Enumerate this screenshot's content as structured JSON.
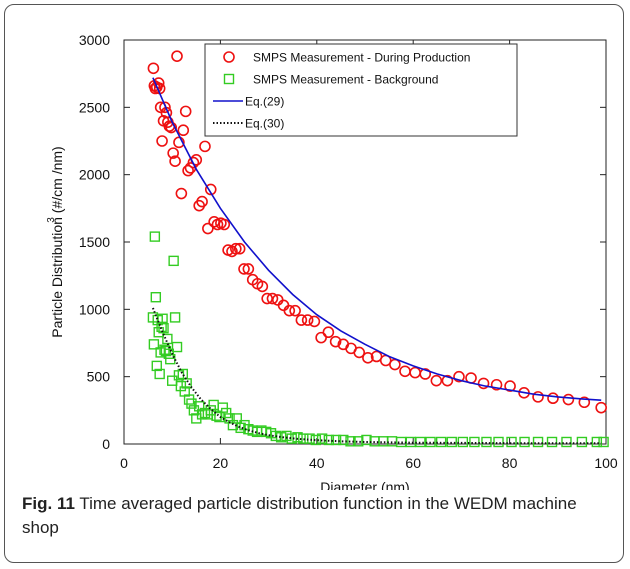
{
  "caption": {
    "label": "Fig. 11",
    "text": "Time averaged particle distribution function in the WEDM machine shop"
  },
  "chart_data": {
    "type": "scatter",
    "xlabel": "Diameter (nm)",
    "ylabel": "Particle Distribution (#/cm  /nm)",
    "ylabel_superscript": "3",
    "xlim": [
      0,
      100
    ],
    "ylim": [
      0,
      3000
    ],
    "xticks": [
      0,
      20,
      40,
      60,
      80,
      100
    ],
    "yticks": [
      0,
      500,
      1000,
      1500,
      2000,
      2500,
      3000
    ],
    "legend_position": "top-right",
    "series": [
      {
        "name": "SMPS Measurement - During Production",
        "kind": "markers",
        "marker": "circle",
        "color": "#ee1111",
        "points": [
          [
            6.1,
            2790
          ],
          [
            6.3,
            2660
          ],
          [
            6.5,
            2640
          ],
          [
            6.8,
            2650
          ],
          [
            7.2,
            2680
          ],
          [
            7.4,
            2640
          ],
          [
            7.6,
            2500
          ],
          [
            7.9,
            2250
          ],
          [
            8.2,
            2400
          ],
          [
            8.5,
            2500
          ],
          [
            8.8,
            2460
          ],
          [
            9.1,
            2390
          ],
          [
            9.4,
            2360
          ],
          [
            9.8,
            2350
          ],
          [
            10.2,
            2160
          ],
          [
            10.6,
            2100
          ],
          [
            11.0,
            2880
          ],
          [
            11.4,
            2240
          ],
          [
            11.9,
            1860
          ],
          [
            12.3,
            2330
          ],
          [
            12.8,
            2470
          ],
          [
            13.3,
            2030
          ],
          [
            13.8,
            2050
          ],
          [
            14.4,
            2090
          ],
          [
            15.0,
            2110
          ],
          [
            15.6,
            1770
          ],
          [
            16.2,
            1800
          ],
          [
            16.8,
            2210
          ],
          [
            17.4,
            1600
          ],
          [
            18.0,
            1890
          ],
          [
            18.7,
            1650
          ],
          [
            19.4,
            1630
          ],
          [
            20.1,
            1640
          ],
          [
            20.8,
            1630
          ],
          [
            21.6,
            1440
          ],
          [
            22.4,
            1430
          ],
          [
            23.2,
            1450
          ],
          [
            24.0,
            1450
          ],
          [
            24.9,
            1300
          ],
          [
            25.8,
            1300
          ],
          [
            26.7,
            1220
          ],
          [
            27.7,
            1190
          ],
          [
            28.7,
            1170
          ],
          [
            29.7,
            1080
          ],
          [
            30.8,
            1080
          ],
          [
            31.9,
            1070
          ],
          [
            33.1,
            1030
          ],
          [
            34.3,
            990
          ],
          [
            35.5,
            990
          ],
          [
            36.8,
            920
          ],
          [
            38.1,
            920
          ],
          [
            39.5,
            910
          ],
          [
            40.9,
            790
          ],
          [
            42.4,
            830
          ],
          [
            43.9,
            760
          ],
          [
            45.5,
            740
          ],
          [
            47.1,
            710
          ],
          [
            48.8,
            680
          ],
          [
            50.6,
            640
          ],
          [
            52.4,
            650
          ],
          [
            54.3,
            620
          ],
          [
            56.2,
            590
          ],
          [
            58.3,
            540
          ],
          [
            60.4,
            530
          ],
          [
            62.5,
            520
          ],
          [
            64.8,
            470
          ],
          [
            67.1,
            470
          ],
          [
            69.5,
            500
          ],
          [
            72.0,
            490
          ],
          [
            74.6,
            450
          ],
          [
            77.3,
            440
          ],
          [
            80.1,
            430
          ],
          [
            83.0,
            380
          ],
          [
            85.9,
            350
          ],
          [
            89.0,
            340
          ],
          [
            92.2,
            330
          ],
          [
            95.5,
            310
          ],
          [
            99.0,
            270
          ]
        ]
      },
      {
        "name": "SMPS Measurement - Background",
        "kind": "markers",
        "marker": "square",
        "color": "#33cc22",
        "points": [
          [
            6.0,
            940
          ],
          [
            6.2,
            740
          ],
          [
            6.4,
            1540
          ],
          [
            6.6,
            1090
          ],
          [
            6.8,
            580
          ],
          [
            7.0,
            920
          ],
          [
            7.2,
            830
          ],
          [
            7.4,
            520
          ],
          [
            7.6,
            680
          ],
          [
            7.8,
            870
          ],
          [
            8.0,
            930
          ],
          [
            8.2,
            860
          ],
          [
            8.4,
            700
          ],
          [
            8.7,
            690
          ],
          [
            9.0,
            780
          ],
          [
            9.3,
            670
          ],
          [
            9.6,
            630
          ],
          [
            10.0,
            470
          ],
          [
            10.3,
            1360
          ],
          [
            10.6,
            940
          ],
          [
            11.0,
            720
          ],
          [
            11.4,
            510
          ],
          [
            11.8,
            430
          ],
          [
            12.2,
            520
          ],
          [
            12.6,
            390
          ],
          [
            13.0,
            450
          ],
          [
            13.5,
            330
          ],
          [
            14.0,
            300
          ],
          [
            14.5,
            250
          ],
          [
            15.0,
            190
          ],
          [
            15.6,
            280
          ],
          [
            16.2,
            220
          ],
          [
            16.8,
            230
          ],
          [
            17.4,
            220
          ],
          [
            18.0,
            250
          ],
          [
            18.6,
            290
          ],
          [
            19.2,
            210
          ],
          [
            19.8,
            200
          ],
          [
            20.5,
            270
          ],
          [
            21.2,
            230
          ],
          [
            21.9,
            190
          ],
          [
            22.6,
            140
          ],
          [
            23.4,
            190
          ],
          [
            24.2,
            120
          ],
          [
            25.0,
            140
          ],
          [
            25.8,
            110
          ],
          [
            26.7,
            100
          ],
          [
            27.6,
            90
          ],
          [
            28.5,
            100
          ],
          [
            29.5,
            90
          ],
          [
            30.5,
            80
          ],
          [
            31.5,
            60
          ],
          [
            32.6,
            50
          ],
          [
            33.7,
            60
          ],
          [
            34.8,
            40
          ],
          [
            36.0,
            50
          ],
          [
            37.2,
            40
          ],
          [
            38.5,
            40
          ],
          [
            39.8,
            30
          ],
          [
            41.1,
            40
          ],
          [
            42.5,
            30
          ],
          [
            44.0,
            30
          ],
          [
            45.5,
            30
          ],
          [
            47.0,
            20
          ],
          [
            48.6,
            20
          ],
          [
            50.3,
            30
          ],
          [
            52.0,
            20
          ],
          [
            53.8,
            20
          ],
          [
            55.6,
            20
          ],
          [
            57.5,
            15
          ],
          [
            59.5,
            15
          ],
          [
            61.5,
            15
          ],
          [
            63.6,
            15
          ],
          [
            65.8,
            15
          ],
          [
            68.0,
            15
          ],
          [
            70.3,
            15
          ],
          [
            72.7,
            15
          ],
          [
            75.2,
            15
          ],
          [
            77.7,
            15
          ],
          [
            80.4,
            15
          ],
          [
            83.1,
            15
          ],
          [
            85.9,
            15
          ],
          [
            88.8,
            15
          ],
          [
            91.8,
            15
          ],
          [
            95.0,
            15
          ],
          [
            98.1,
            15
          ],
          [
            99.5,
            15
          ]
        ]
      },
      {
        "name": "Eq.(29)",
        "kind": "line",
        "style": "solid",
        "color": "#1111cc",
        "points": [
          [
            6,
            2720
          ],
          [
            10,
            2390
          ],
          [
            15,
            2040
          ],
          [
            20,
            1750
          ],
          [
            25,
            1500
          ],
          [
            30,
            1290
          ],
          [
            35,
            1110
          ],
          [
            40,
            960
          ],
          [
            45,
            840
          ],
          [
            50,
            740
          ],
          [
            55,
            650
          ],
          [
            60,
            580
          ],
          [
            65,
            520
          ],
          [
            70,
            470
          ],
          [
            75,
            430
          ],
          [
            80,
            400
          ],
          [
            85,
            370
          ],
          [
            90,
            350
          ],
          [
            95,
            335
          ],
          [
            99,
            325
          ]
        ]
      },
      {
        "name": "Eq.(30)",
        "kind": "line",
        "style": "dotted",
        "color": "#111111",
        "points": [
          [
            6,
            1010
          ],
          [
            8,
            830
          ],
          [
            10,
            670
          ],
          [
            12,
            530
          ],
          [
            14,
            420
          ],
          [
            16,
            330
          ],
          [
            18,
            260
          ],
          [
            20,
            200
          ],
          [
            22,
            160
          ],
          [
            24,
            125
          ],
          [
            26,
            100
          ],
          [
            28,
            80
          ],
          [
            30,
            65
          ],
          [
            33,
            50
          ],
          [
            36,
            38
          ],
          [
            40,
            28
          ],
          [
            45,
            20
          ],
          [
            50,
            15
          ],
          [
            60,
            10
          ],
          [
            70,
            8
          ],
          [
            80,
            6
          ],
          [
            90,
            5
          ],
          [
            99,
            5
          ]
        ]
      }
    ]
  }
}
